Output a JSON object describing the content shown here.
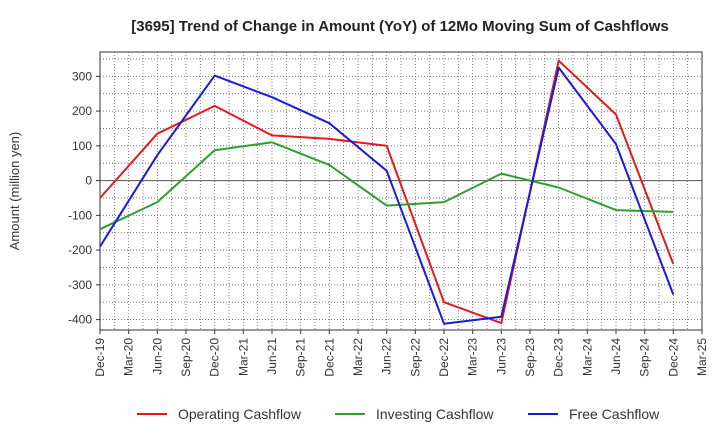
{
  "chart_data": {
    "type": "line",
    "title": "[3695]  Trend of Change in Amount (YoY) of 12Mo Moving Sum of Cashflows",
    "xlabel": "",
    "ylabel": "Amount (million yen)",
    "ylim": [
      -430,
      370
    ],
    "yticks": [
      -400,
      -300,
      -200,
      -100,
      0,
      100,
      200,
      300
    ],
    "grid": true,
    "legend_position": "bottom",
    "categories": [
      "Dec-19",
      "Mar-20",
      "Jun-20",
      "Sep-20",
      "Dec-20",
      "Mar-21",
      "Jun-21",
      "Sep-21",
      "Dec-21",
      "Mar-22",
      "Jun-22",
      "Sep-22",
      "Dec-22",
      "Mar-23",
      "Jun-23",
      "Sep-23",
      "Dec-23",
      "Mar-24",
      "Jun-24",
      "Sep-24",
      "Dec-24",
      "Mar-25"
    ],
    "series": [
      {
        "name": "Operating Cashflow",
        "color": "#e31a1c",
        "values": [
          -50,
          null,
          135,
          null,
          215,
          null,
          130,
          null,
          120,
          null,
          100,
          null,
          -350,
          null,
          -410,
          null,
          345,
          null,
          190,
          null,
          -240,
          null
        ]
      },
      {
        "name": "Investing Cashflow",
        "color": "#2ca02c",
        "values": [
          -140,
          null,
          -62,
          null,
          87,
          null,
          110,
          null,
          45,
          null,
          -72,
          null,
          -62,
          null,
          20,
          null,
          -20,
          null,
          -85,
          null,
          -90,
          null
        ]
      },
      {
        "name": "Free Cashflow",
        "color": "#1a1adc",
        "values": [
          -190,
          null,
          73,
          null,
          302,
          null,
          240,
          null,
          165,
          null,
          28,
          null,
          -412,
          null,
          -392,
          null,
          325,
          null,
          105,
          null,
          -328,
          null
        ]
      }
    ]
  }
}
